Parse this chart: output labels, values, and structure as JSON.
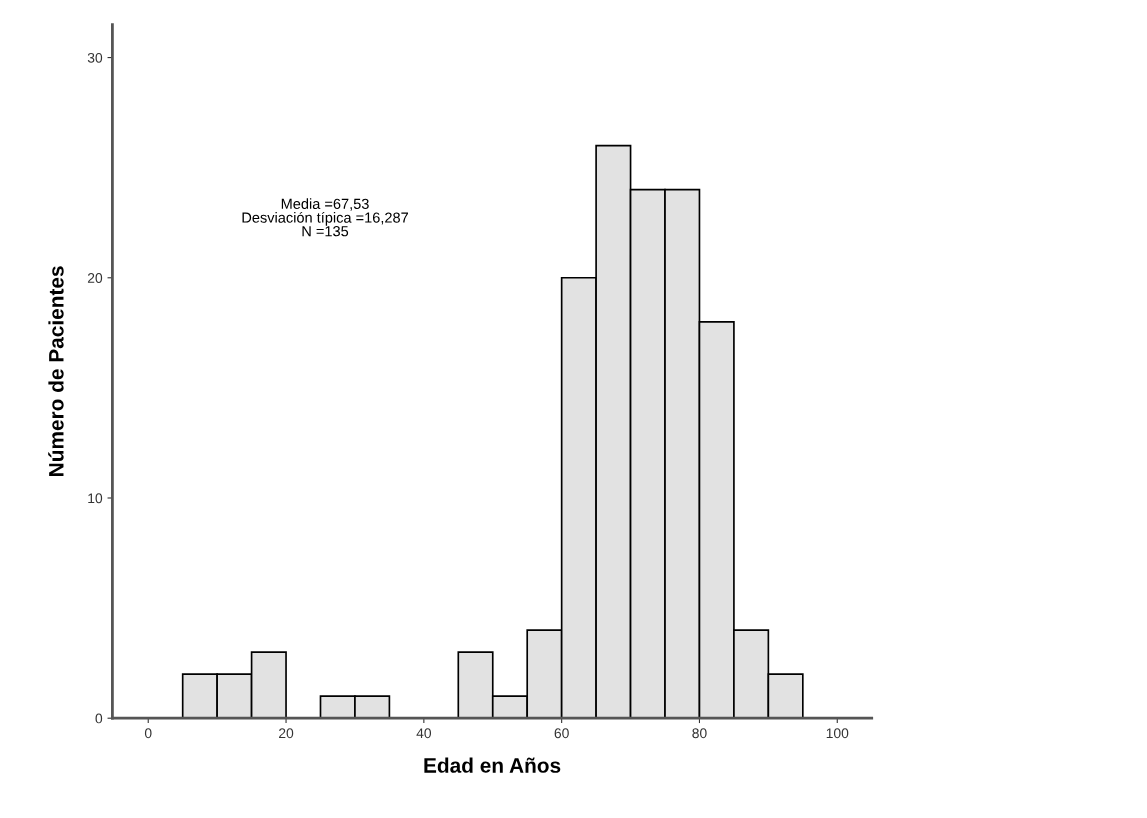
{
  "chart_data": {
    "type": "histogram",
    "xlabel": "Edad en Años",
    "ylabel": "Número de Pacientes",
    "bins": [
      0,
      5,
      10,
      15,
      20,
      25,
      30,
      35,
      40,
      45,
      50,
      55,
      60,
      65,
      70,
      75,
      80,
      85,
      90,
      95,
      100
    ],
    "values": [
      0,
      2,
      2,
      3,
      0,
      1,
      1,
      0,
      0,
      3,
      1,
      4,
      20,
      26,
      24,
      24,
      18,
      4,
      2,
      0
    ],
    "color": "#e2e2e2",
    "xlim": [
      -5.2,
      105
    ],
    "ylim": [
      0,
      31.5
    ],
    "xticks": [
      0,
      20,
      40,
      60,
      80,
      100
    ],
    "yticks": [
      0,
      10,
      20,
      30
    ],
    "grid": false,
    "annotations": [
      "Media =67,53\nDesviación típica =16,287\nN =135"
    ]
  }
}
